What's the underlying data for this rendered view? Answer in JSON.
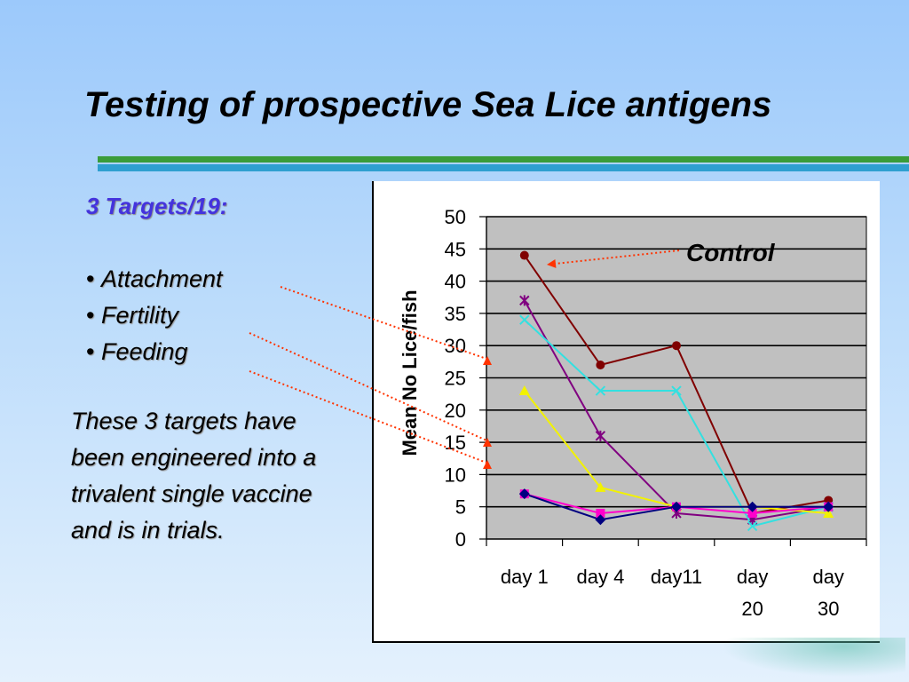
{
  "slide": {
    "title": "Testing of prospective Sea Lice antigens",
    "targets_heading": "3 Targets/19:",
    "bullets": [
      "Attachment",
      "Fertility",
      "Feeding"
    ],
    "paragraph": "These 3 targets have been engineered into a trivalent single vaccine and is in trials."
  },
  "chart_data": {
    "type": "line",
    "ylabel": "Mean No Lice/fish",
    "categories": [
      [
        "day 1"
      ],
      [
        "day 4"
      ],
      [
        "day11"
      ],
      [
        "day",
        "20"
      ],
      [
        "day",
        "30"
      ]
    ],
    "ylim": [
      0,
      50
    ],
    "yticks": [
      0,
      5,
      10,
      15,
      20,
      25,
      30,
      35,
      40,
      45,
      50
    ],
    "grid": true,
    "annotation": "Control",
    "series": [
      {
        "color": "#800000",
        "marker": "circle",
        "values": [
          44,
          27,
          30,
          4,
          6
        ]
      },
      {
        "color": "#800080",
        "marker": "star",
        "values": [
          37,
          16,
          4,
          3,
          5
        ]
      },
      {
        "color": "#33e0e0",
        "marker": "x",
        "values": [
          34,
          23,
          23,
          2,
          5
        ]
      },
      {
        "color": "#f2f200",
        "marker": "triangle",
        "values": [
          23,
          8,
          5,
          5,
          4
        ]
      },
      {
        "color": "#ff00cc",
        "marker": "square",
        "values": [
          7,
          4,
          5,
          4,
          5
        ]
      },
      {
        "color": "#000080",
        "marker": "diamond",
        "values": [
          7,
          3,
          5,
          5,
          5
        ]
      }
    ],
    "pointer_color": "#ff3300"
  }
}
